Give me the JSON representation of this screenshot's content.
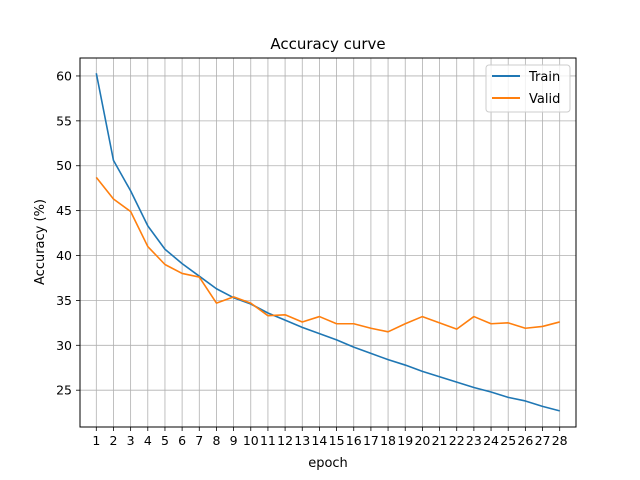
{
  "chart_data": {
    "type": "line",
    "title": "Accuracy curve",
    "xlabel": "epoch",
    "ylabel": "Accuracy (%)",
    "x": [
      1,
      2,
      3,
      4,
      5,
      6,
      7,
      8,
      9,
      10,
      11,
      12,
      13,
      14,
      15,
      16,
      17,
      18,
      19,
      20,
      21,
      22,
      23,
      24,
      25,
      26,
      27,
      28
    ],
    "xlim": [
      0.05,
      28.95
    ],
    "ylim": [
      20.9,
      62.0
    ],
    "yticks": [
      25,
      30,
      35,
      40,
      45,
      50,
      55,
      60
    ],
    "grid": true,
    "legend_position": "top-right",
    "series": [
      {
        "name": "Train",
        "color": "#1f77b4",
        "values": [
          60.3,
          50.6,
          47.2,
          43.3,
          40.7,
          39.1,
          37.7,
          36.3,
          35.3,
          34.6,
          33.6,
          32.8,
          32.0,
          31.3,
          30.6,
          29.8,
          29.1,
          28.4,
          27.8,
          27.1,
          26.5,
          25.9,
          25.3,
          24.8,
          24.2,
          23.8,
          23.2,
          22.7
        ]
      },
      {
        "name": "Valid",
        "color": "#ff7f0e",
        "values": [
          48.7,
          46.3,
          44.9,
          41.0,
          39.0,
          38.0,
          37.6,
          34.7,
          35.4,
          34.7,
          33.3,
          33.4,
          32.6,
          33.2,
          32.4,
          32.4,
          31.9,
          31.5,
          32.4,
          33.2,
          32.5,
          31.8,
          33.2,
          32.4,
          32.5,
          31.9,
          32.1,
          32.6
        ]
      }
    ]
  }
}
